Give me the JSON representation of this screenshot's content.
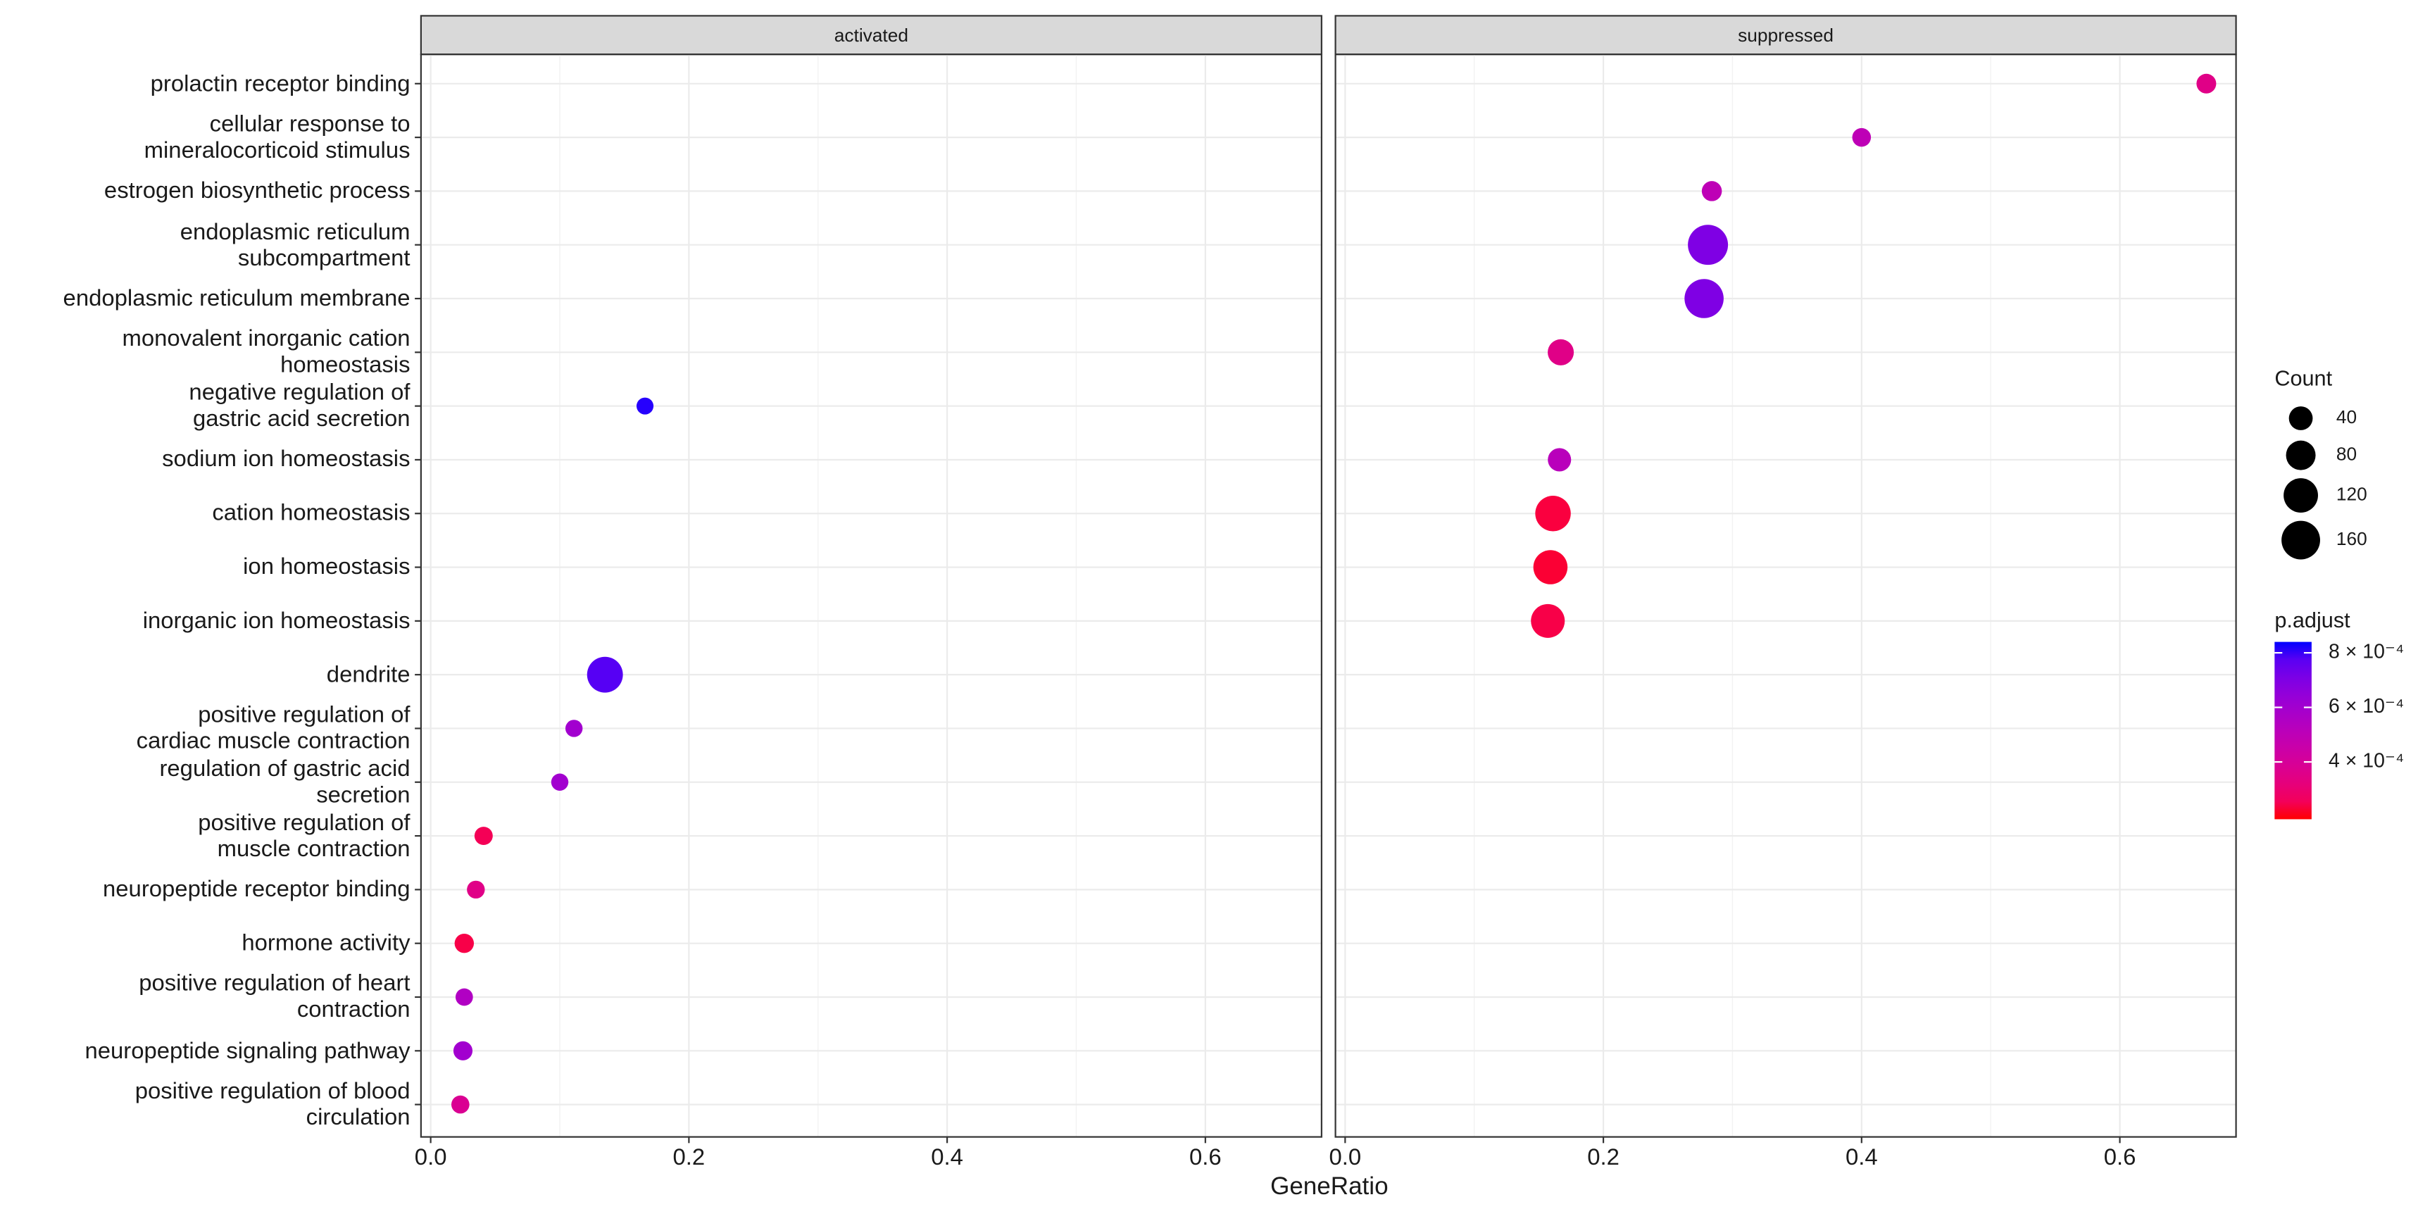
{
  "chart_data": {
    "type": "dot",
    "x_label": "GeneRatio",
    "grid": true,
    "categories": [
      "prolactin receptor binding",
      "cellular response to\nmineralocorticoid stimulus",
      "estrogen biosynthetic process",
      "endoplasmic reticulum\nsubcompartment",
      "endoplasmic reticulum membrane",
      "monovalent inorganic cation\nhomeostasis",
      "negative regulation of\ngastric acid secretion",
      "sodium ion homeostasis",
      "cation homeostasis",
      "ion homeostasis",
      "inorganic ion homeostasis",
      "dendrite",
      "positive regulation of\ncardiac muscle contraction",
      "regulation of gastric acid\nsecretion",
      "positive regulation of\nmuscle contraction",
      "neuropeptide receptor binding",
      "hormone activity",
      "positive regulation of heart\ncontraction",
      "neuropeptide signaling pathway",
      "positive regulation of blood\ncirculation"
    ],
    "facets": [
      {
        "title": "activated",
        "x": [
          null,
          null,
          null,
          null,
          null,
          null,
          0.166,
          null,
          null,
          null,
          null,
          0.135,
          0.111,
          0.1,
          0.041,
          0.035,
          0.026,
          0.026,
          0.025,
          0.023
        ],
        "count": [
          null,
          null,
          null,
          null,
          null,
          null,
          4,
          null,
          null,
          null,
          null,
          133,
          5,
          5,
          10,
          8,
          15,
          6,
          14,
          9
        ],
        "p_adjust": [
          null,
          null,
          null,
          null,
          null,
          null,
          0.00083,
          null,
          null,
          null,
          null,
          0.00078,
          0.0006,
          0.0006,
          0.00025,
          0.00035,
          0.00023,
          0.00055,
          0.0006,
          0.00038
        ]
      },
      {
        "title": "suppressed",
        "x": [
          0.667,
          0.4,
          0.284,
          0.281,
          0.278,
          0.167,
          null,
          0.166,
          0.161,
          0.159,
          0.157,
          null,
          null,
          null,
          null,
          null,
          null,
          null,
          null,
          null
        ],
        "count": [
          17,
          12,
          19,
          175,
          165,
          55,
          null,
          37,
          130,
          118,
          115,
          null,
          null,
          null,
          null,
          null,
          null,
          null,
          null,
          null
        ],
        "p_adjust": [
          0.00035,
          0.0005,
          0.0005,
          0.0007,
          0.0007,
          0.00035,
          null,
          0.00052,
          0.00022,
          0.00021,
          0.00023,
          null,
          null,
          null,
          null,
          null,
          null,
          null,
          null,
          null
        ]
      }
    ],
    "xlim": [
      -0.0075,
      0.69
    ],
    "xticks": [
      {
        "value": 0,
        "label": "0.0"
      },
      0.2,
      0.4,
      0.6
    ],
    "size_legend": {
      "title": "Count",
      "ticks": [
        40,
        80,
        120,
        160
      ]
    },
    "color_legend": {
      "title": "p.adjust",
      "lim": [
        0.00019,
        0.00084
      ],
      "low_color": "#ff0000",
      "high_color": "#0000ff",
      "ticks": [
        {
          "value": 0.0004,
          "label": "4 × 10⁻⁴"
        },
        {
          "value": 0.0006,
          "label": "6 × 10⁻⁴"
        },
        {
          "value": 0.0008,
          "label": "8 × 10⁻⁴"
        }
      ]
    }
  }
}
